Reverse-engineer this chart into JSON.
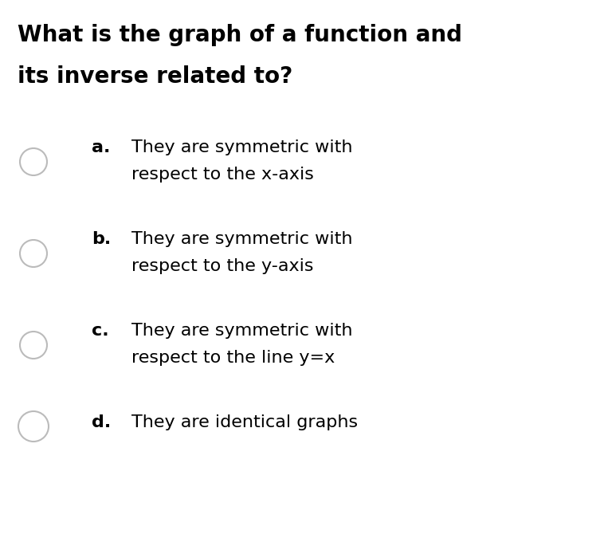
{
  "background_color": "#ffffff",
  "title_lines": [
    "What is the graph of a function and",
    "its inverse related to?"
  ],
  "title_fontsize": 20,
  "title_fontweight": "bold",
  "title_color": "#000000",
  "options": [
    {
      "label": "a.",
      "lines": [
        "They are symmetric with",
        "respect to the x-axis"
      ],
      "circle_color": "#bbbbbb",
      "label_fontweight": "bold"
    },
    {
      "label": "b.",
      "lines": [
        "They are symmetric with",
        "respect to the y-axis"
      ],
      "circle_color": "#bbbbbb",
      "label_fontweight": "bold"
    },
    {
      "label": "c.",
      "lines": [
        "They are symmetric with",
        "respect to the line y=x"
      ],
      "circle_color": "#bbbbbb",
      "label_fontweight": "bold"
    },
    {
      "label": "d.",
      "lines": [
        "They are identical graphs"
      ],
      "circle_color": "#bbbbbb",
      "label_fontweight": "bold"
    }
  ],
  "option_fontsize": 16,
  "label_fontsize": 16,
  "figwidth": 7.58,
  "figheight": 6.7,
  "dpi": 100
}
